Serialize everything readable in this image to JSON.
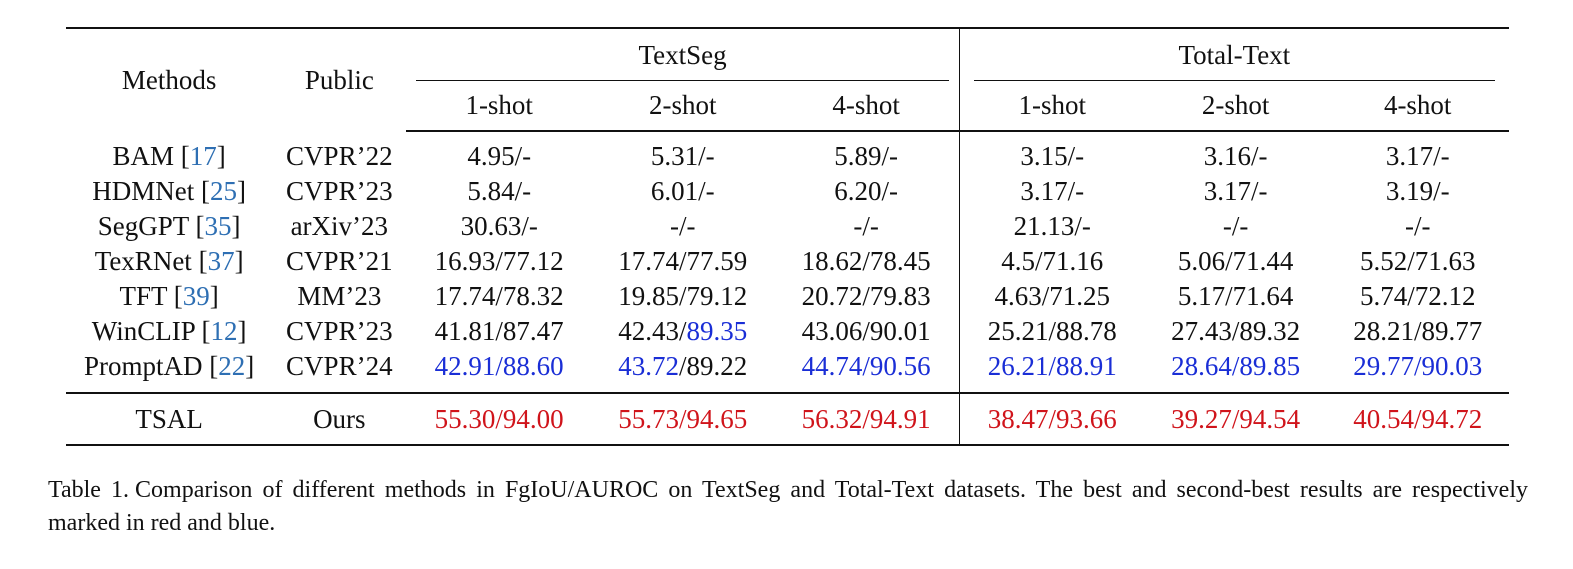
{
  "table": {
    "header": {
      "methods": "Methods",
      "public": "Public",
      "group_textseg": "TextSeg",
      "group_totaltext": "Total-Text",
      "shots": [
        "1-shot",
        "2-shot",
        "4-shot",
        "1-shot",
        "2-shot",
        "4-shot"
      ]
    },
    "rows": [
      {
        "method": "BAM",
        "ref": "17",
        "public": "CVPR’22",
        "cells": [
          {
            "a": "4.95/-"
          },
          {
            "a": "5.31/-"
          },
          {
            "a": "5.89/-"
          },
          {
            "a": "3.15/-"
          },
          {
            "a": "3.16/-"
          },
          {
            "a": "3.17/-"
          }
        ]
      },
      {
        "method": "HDMNet",
        "ref": "25",
        "public": "CVPR’23",
        "cells": [
          {
            "a": "5.84/-"
          },
          {
            "a": "6.01/-"
          },
          {
            "a": "6.20/-"
          },
          {
            "a": "3.17/-"
          },
          {
            "a": "3.17/-"
          },
          {
            "a": "3.19/-"
          }
        ]
      },
      {
        "method": "SegGPT",
        "ref": "35",
        "public": "arXiv’23",
        "cells": [
          {
            "a": "30.63/-"
          },
          {
            "a": "-/-"
          },
          {
            "a": "-/-"
          },
          {
            "a": "21.13/-"
          },
          {
            "a": "-/-"
          },
          {
            "a": "-/-"
          }
        ]
      },
      {
        "method": "TexRNet",
        "ref": "37",
        "public": "CVPR’21",
        "cells": [
          {
            "a": "16.93/77.12"
          },
          {
            "a": "17.74/77.59"
          },
          {
            "a": "18.62/78.45"
          },
          {
            "a": "4.5/71.16"
          },
          {
            "a": "5.06/71.44"
          },
          {
            "a": "5.52/71.63"
          }
        ]
      },
      {
        "method": "TFT",
        "ref": "39",
        "public": "MM’23",
        "cells": [
          {
            "a": "17.74/78.32"
          },
          {
            "a": "19.85/79.12"
          },
          {
            "a": "20.72/79.83"
          },
          {
            "a": "4.63/71.25"
          },
          {
            "a": "5.17/71.64"
          },
          {
            "a": "5.74/72.12"
          }
        ]
      },
      {
        "method": "WinCLIP",
        "ref": "12",
        "public": "CVPR’23",
        "cells": [
          {
            "a": "41.81/87.47"
          },
          {
            "a": "42.43/",
            "b": "89.35"
          },
          {
            "a": "43.06/90.01"
          },
          {
            "a": "25.21/88.78"
          },
          {
            "a": "27.43/89.32"
          },
          {
            "a": "28.21/89.77"
          }
        ]
      },
      {
        "method": "PromptAD",
        "ref": "22",
        "public": "CVPR’24",
        "cells": [
          {
            "a": "42.91/88.60"
          },
          {
            "a": "43.72",
            "b": "/89.22"
          },
          {
            "a": "44.74/90.56"
          },
          {
            "a": "26.21/88.91"
          },
          {
            "a": "28.64/89.85"
          },
          {
            "a": "29.77/90.03"
          }
        ]
      }
    ],
    "ours": {
      "method": "TSAL",
      "public": "Ours",
      "cells": [
        "55.30/94.00",
        "55.73/94.65",
        "56.32/94.91",
        "38.47/93.66",
        "39.27/94.54",
        "40.54/94.72"
      ]
    },
    "highlight_colors": {
      "best": "#d0141b",
      "second_best": "#1a2ed6",
      "citation": "#2e6fb3"
    }
  },
  "caption": {
    "label": "Table 1.",
    "text": "Comparison of different methods in FgIoU/AUROC on TextSeg and Total-Text datasets. The best and second-best results are respectively marked in red and blue."
  }
}
